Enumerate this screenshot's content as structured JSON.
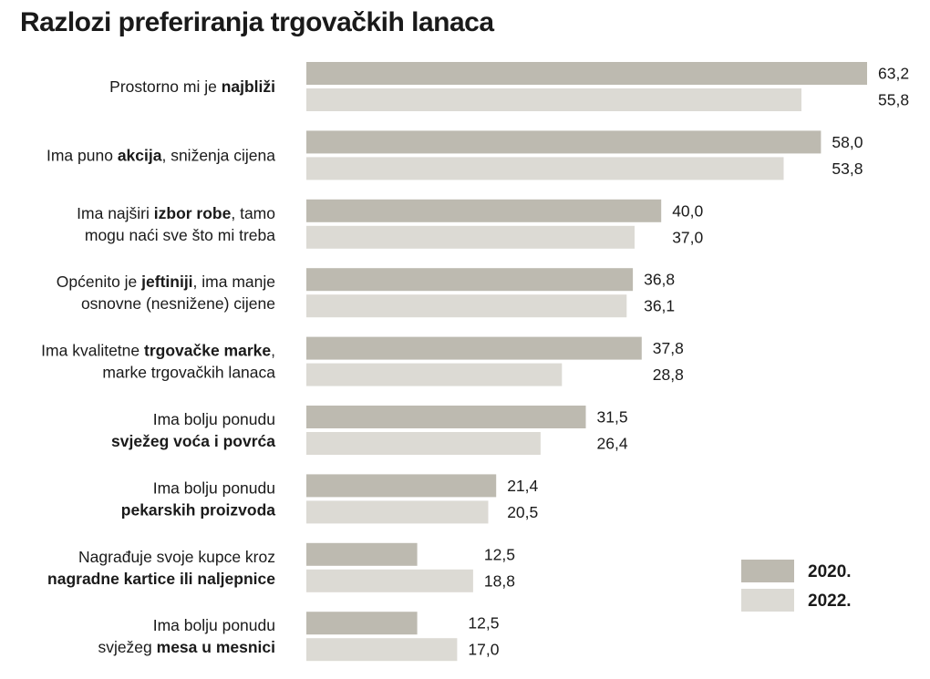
{
  "chart_data": {
    "type": "bar",
    "orientation": "horizontal",
    "title": "Razlozi preferiranja trgovačkih lanaca",
    "categories": [
      {
        "lines": [
          [
            {
              "t": "Prostorno mi je ",
              "b": false
            },
            {
              "t": "najbliži",
              "b": true
            }
          ]
        ]
      },
      {
        "lines": [
          [
            {
              "t": "Ima puno ",
              "b": false
            },
            {
              "t": "akcija",
              "b": true
            },
            {
              "t": ", sniženja cijena",
              "b": false
            }
          ]
        ]
      },
      {
        "lines": [
          [
            {
              "t": "Ima najširi ",
              "b": false
            },
            {
              "t": "izbor robe",
              "b": true
            },
            {
              "t": ", tamo",
              "b": false
            }
          ],
          [
            {
              "t": "mogu naći sve što mi treba",
              "b": false
            }
          ]
        ]
      },
      {
        "lines": [
          [
            {
              "t": "Općenito je ",
              "b": false
            },
            {
              "t": "jeftiniji",
              "b": true
            },
            {
              "t": ", ima manje",
              "b": false
            }
          ],
          [
            {
              "t": "osnovne (nesnižene) cijene",
              "b": false
            }
          ]
        ]
      },
      {
        "lines": [
          [
            {
              "t": "Ima kvalitetne ",
              "b": false
            },
            {
              "t": "trgovačke marke",
              "b": true
            },
            {
              "t": ",",
              "b": false
            }
          ],
          [
            {
              "t": "marke trgovačkih lanaca",
              "b": false
            }
          ]
        ]
      },
      {
        "lines": [
          [
            {
              "t": "Ima bolju ponudu",
              "b": false
            }
          ],
          [
            {
              "t": "svježeg voća i povrća",
              "b": true
            }
          ]
        ]
      },
      {
        "lines": [
          [
            {
              "t": "Ima bolju ponudu",
              "b": false
            }
          ],
          [
            {
              "t": "pekarskih proizvoda",
              "b": true
            }
          ]
        ]
      },
      {
        "lines": [
          [
            {
              "t": "Nagrađuje svoje kupce kroz",
              "b": false
            }
          ],
          [
            {
              "t": "nagradne kartice ili naljepnice",
              "b": true
            }
          ]
        ]
      },
      {
        "lines": [
          [
            {
              "t": "Ima bolju ponudu",
              "b": false
            }
          ],
          [
            {
              "t": "svježeg ",
              "b": false
            },
            {
              "t": "mesa u mesnici",
              "b": true
            }
          ]
        ]
      }
    ],
    "series": [
      {
        "name": "2020.",
        "color": "#bdbab0",
        "values": [
          63.2,
          58.0,
          40.0,
          36.8,
          37.8,
          31.5,
          21.4,
          12.5,
          12.5
        ],
        "labels": [
          "63,2",
          "58,0",
          "40,0",
          "36,8",
          "37,8",
          "31,5",
          "21,4",
          "12,5",
          "12,5"
        ]
      },
      {
        "name": "2022.",
        "color": "#dcdad4",
        "values": [
          55.8,
          53.8,
          37.0,
          36.1,
          28.8,
          26.4,
          20.5,
          18.8,
          17.0
        ],
        "labels": [
          "55,8",
          "53,8",
          "37,0",
          "36,1",
          "28,8",
          "26,4",
          "20,5",
          "18,8",
          "17,0"
        ]
      }
    ],
    "xlim": [
      0,
      63.2
    ],
    "grid": false,
    "legend_position": "bottom-right"
  }
}
